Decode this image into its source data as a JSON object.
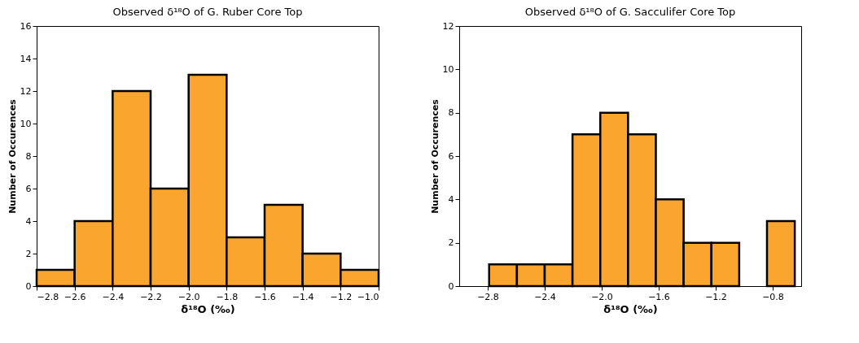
{
  "chart_data": [
    {
      "type": "histogram",
      "title": "Observed δ¹⁸O of G. Ruber Core Top",
      "xlabel": "δ¹⁸O (‰)",
      "ylabel": "Number of Occurences",
      "bins": [
        -2.8,
        -2.6,
        -2.4,
        -2.2,
        -2.0,
        -1.8,
        -1.6,
        -1.4,
        -1.2,
        -1.0
      ],
      "values": [
        1,
        4,
        12,
        6,
        13,
        3,
        5,
        2,
        1
      ],
      "color": "#f9a52e",
      "xlim": [
        -2.8,
        -1.0
      ],
      "xticks": [
        {
          "value": -2.8,
          "label": "−2.8"
        },
        {
          "value": -2.6,
          "label": "−2.6"
        },
        {
          "value": -2.4,
          "label": "−2.4"
        },
        {
          "value": -2.2,
          "label": "−2.2"
        },
        {
          "value": -2.0,
          "label": "−2.0"
        },
        {
          "value": -1.8,
          "label": "−1.8"
        },
        {
          "value": -1.6,
          "label": "−1.6"
        },
        {
          "value": -1.4,
          "label": "−1.4"
        },
        {
          "value": -1.2,
          "label": "−1.2"
        },
        {
          "value": -1.0,
          "label": "−1.0"
        }
      ],
      "ylim": [
        0,
        16
      ],
      "yticks": [
        0,
        2,
        4,
        6,
        8,
        10,
        12,
        14,
        16
      ]
    },
    {
      "type": "histogram",
      "title": "Observed δ¹⁸O of G. Sacculifer Core Top",
      "xlabel": "δ¹⁸O (‰)",
      "ylabel": "Number of Occurences",
      "bins": [
        -2.79,
        -2.595,
        -2.4,
        -2.205,
        -2.01,
        -1.815,
        -1.62,
        -1.425,
        -1.23,
        -1.035,
        -0.84,
        -0.645
      ],
      "values": [
        1,
        1,
        1,
        7,
        8,
        7,
        4,
        2,
        2,
        0,
        3
      ],
      "color": "#f9a52e",
      "xlim": [
        -3.0,
        -0.6
      ],
      "xticks": [
        {
          "value": -2.8,
          "label": "−2.8"
        },
        {
          "value": -2.4,
          "label": "−2.4"
        },
        {
          "value": -2.0,
          "label": "−2.0"
        },
        {
          "value": -1.6,
          "label": "−1.6"
        },
        {
          "value": -1.2,
          "label": "−1.2"
        },
        {
          "value": -0.8,
          "label": "−0.8"
        }
      ],
      "ylim": [
        0,
        12
      ],
      "yticks": [
        0,
        2,
        4,
        6,
        8,
        10,
        12
      ]
    }
  ]
}
